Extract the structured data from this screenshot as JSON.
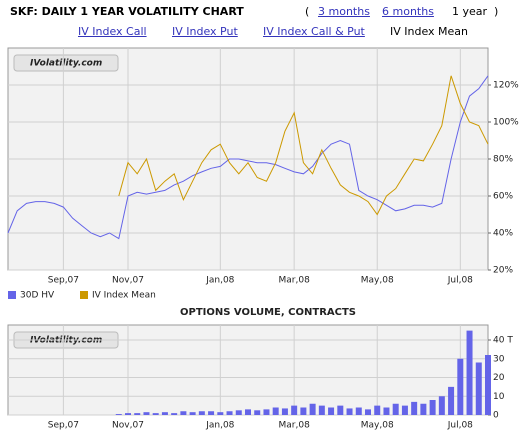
{
  "header": {
    "title": "SKF: DAILY 1 YEAR VOLATILITY CHART",
    "bracket_open": "(",
    "bracket_close": ")",
    "periods": [
      "3 months",
      "6 months",
      "1 year"
    ],
    "nav": [
      "IV Index Call",
      "IV Index Put",
      "IV Index Call & Put",
      "IV Index Mean"
    ]
  },
  "chart_data": [
    {
      "type": "line",
      "watermark": "IVolatility.com",
      "categories": [
        null,
        null,
        null,
        null,
        null,
        null,
        "Sep,07",
        null,
        null,
        null,
        null,
        null,
        null,
        "Nov,07",
        null,
        null,
        null,
        null,
        null,
        null,
        null,
        null,
        null,
        "Jan,08",
        null,
        null,
        null,
        null,
        null,
        null,
        null,
        "Mar,08",
        null,
        null,
        null,
        null,
        null,
        null,
        null,
        null,
        "May,08",
        null,
        null,
        null,
        null,
        null,
        null,
        null,
        null,
        "Jul,08",
        null,
        null,
        null
      ],
      "series": [
        {
          "name": "30D HV",
          "color": "#6464e8",
          "values": [
            40,
            52,
            56,
            57,
            57,
            56,
            54,
            48,
            44,
            40,
            38,
            40,
            37,
            60,
            62,
            61,
            62,
            63,
            66,
            68,
            71,
            73,
            75,
            76,
            80,
            80,
            79,
            78,
            78,
            77,
            75,
            73,
            72,
            76,
            83,
            88,
            90,
            88,
            63,
            60,
            58,
            55,
            52,
            53,
            55,
            55,
            54,
            56,
            80,
            100,
            114,
            118,
            125
          ]
        },
        {
          "name": "IV Index Mean",
          "color": "#cc9900",
          "values": [
            null,
            null,
            null,
            null,
            null,
            null,
            null,
            null,
            null,
            null,
            null,
            null,
            60,
            78,
            72,
            80,
            63,
            68,
            72,
            58,
            68,
            78,
            85,
            88,
            78,
            72,
            78,
            70,
            68,
            78,
            95,
            105,
            78,
            72,
            85,
            75,
            66,
            62,
            60,
            57,
            50,
            60,
            64,
            72,
            80,
            79,
            88,
            98,
            125,
            110,
            100,
            98,
            88
          ]
        }
      ],
      "ylim": [
        20,
        140
      ],
      "yticks": [
        {
          "value": 20,
          "label": "20%"
        },
        {
          "value": 40,
          "label": "40%"
        },
        {
          "value": 60,
          "label": "60%"
        },
        {
          "value": 80,
          "label": "80%"
        },
        {
          "value": 100,
          "label": "100%"
        },
        {
          "value": 120,
          "label": "120%"
        }
      ],
      "grid": true,
      "legend": "bottom-left"
    },
    {
      "type": "bar",
      "title": "OPTIONS VOLUME, CONTRACTS",
      "watermark": "IVolatility.com",
      "color": "#6464e8",
      "categories": [
        null,
        null,
        null,
        null,
        null,
        null,
        "Sep,07",
        null,
        null,
        null,
        null,
        null,
        null,
        "Nov,07",
        null,
        null,
        null,
        null,
        null,
        null,
        null,
        null,
        null,
        "Jan,08",
        null,
        null,
        null,
        null,
        null,
        null,
        null,
        "Mar,08",
        null,
        null,
        null,
        null,
        null,
        null,
        null,
        null,
        "May,08",
        null,
        null,
        null,
        null,
        null,
        null,
        null,
        null,
        "Jul,08",
        null,
        null,
        null
      ],
      "values": [
        0,
        0,
        0,
        0,
        0,
        0,
        0,
        0,
        0,
        0,
        0,
        0,
        0.5,
        1,
        1,
        1.5,
        1,
        1.5,
        1,
        2,
        1.5,
        2,
        2,
        1.5,
        2,
        2.5,
        3,
        2.5,
        3,
        4,
        3.5,
        5,
        4,
        6,
        5,
        4,
        5,
        3.5,
        4,
        3,
        5,
        4,
        6,
        5,
        7,
        6,
        8,
        10,
        15,
        30,
        45,
        28,
        32
      ],
      "ylim": [
        0,
        48
      ],
      "yticks": [
        0,
        10,
        20,
        30,
        {
          "value": 40,
          "label": "40 T"
        }
      ],
      "grid": true
    }
  ]
}
